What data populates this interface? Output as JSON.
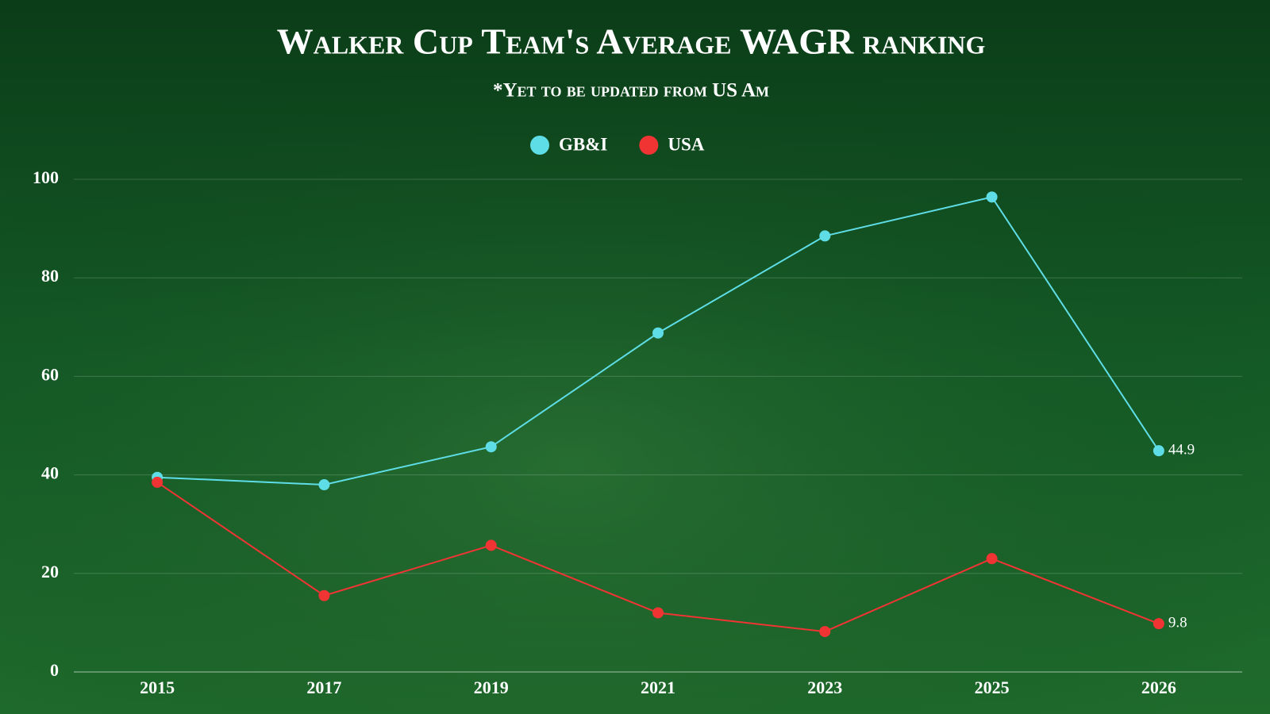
{
  "chart_data": {
    "type": "line",
    "title": "Walker Cup Team's Average WAGR ranking",
    "subtitle": "*Yet to be updated from US Am",
    "categories": [
      "2015",
      "2017",
      "2019",
      "2021",
      "2023",
      "2025",
      "2026"
    ],
    "series": [
      {
        "name": "GB&I",
        "color": "#5fdde6",
        "values": [
          39.5,
          38.0,
          45.7,
          68.8,
          88.5,
          96.4,
          44.9
        ]
      },
      {
        "name": "USA",
        "color": "#f03434",
        "values": [
          38.5,
          15.5,
          25.7,
          12.0,
          8.2,
          23.0,
          9.8
        ]
      }
    ],
    "ylim": [
      0,
      100
    ],
    "yticks": [
      0,
      20,
      40,
      60,
      80,
      100
    ],
    "grid": true,
    "legend": "top",
    "data_labels": "last"
  }
}
